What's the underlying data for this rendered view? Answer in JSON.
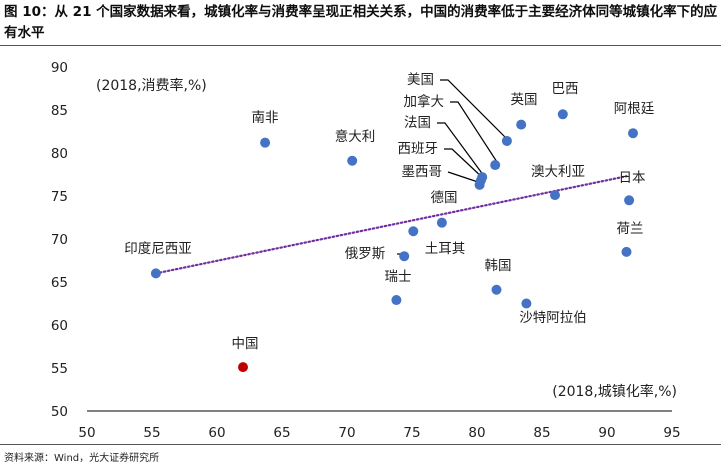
{
  "figure_title": "图 10：从 21 个国家数据来看，城镇化率与消费率呈现正相关关系，中国的消费率低于主要经济体同等城镇化率下的应有水平",
  "source": "资料来源：Wind，光大证券研究所",
  "chart_data": {
    "type": "scatter",
    "ylabel": "(2018,消费率,%)",
    "xlabel": "(2018,城镇化率,%)",
    "xlim": [
      50,
      95
    ],
    "ylim": [
      50,
      90
    ],
    "x_ticks": [
      50,
      55,
      60,
      65,
      70,
      75,
      80,
      85,
      90,
      95
    ],
    "y_ticks": [
      50,
      55,
      60,
      65,
      70,
      75,
      80,
      85,
      90
    ],
    "grid": false,
    "point_color": "#4472c4",
    "highlight_color": "#c00000",
    "trendline_color": "#7030a0",
    "trendline": {
      "style": "dotted",
      "from": [
        55.3,
        66.0
      ],
      "to": [
        91.5,
        77.3
      ]
    },
    "points": [
      {
        "name": "美国",
        "x": 82.3,
        "y": 81.4
      },
      {
        "name": "加拿大",
        "x": 81.4,
        "y": 78.6
      },
      {
        "name": "法国",
        "x": 80.4,
        "y": 77.2
      },
      {
        "name": "西班牙",
        "x": 80.3,
        "y": 76.8
      },
      {
        "name": "墨西哥",
        "x": 80.2,
        "y": 76.3
      },
      {
        "name": "英国",
        "x": 83.4,
        "y": 83.3
      },
      {
        "name": "巴西",
        "x": 86.6,
        "y": 84.5
      },
      {
        "name": "阿根廷",
        "x": 92.0,
        "y": 82.3
      },
      {
        "name": "南非",
        "x": 63.7,
        "y": 81.2
      },
      {
        "name": "意大利",
        "x": 70.4,
        "y": 79.1
      },
      {
        "name": "澳大利亚",
        "x": 86.0,
        "y": 75.1
      },
      {
        "name": "日本",
        "x": 91.7,
        "y": 74.5
      },
      {
        "name": "德国",
        "x": 77.3,
        "y": 71.9
      },
      {
        "name": "土耳其",
        "x": 75.1,
        "y": 70.9
      },
      {
        "name": "荷兰",
        "x": 91.5,
        "y": 68.5
      },
      {
        "name": "印度尼西亚",
        "x": 55.3,
        "y": 66.0
      },
      {
        "name": "俄罗斯",
        "x": 74.4,
        "y": 68.0
      },
      {
        "name": "韩国",
        "x": 81.5,
        "y": 64.1
      },
      {
        "name": "瑞士",
        "x": 73.8,
        "y": 62.9
      },
      {
        "name": "沙特阿拉伯",
        "x": 83.8,
        "y": 62.5
      },
      {
        "name": "中国",
        "x": 62.0,
        "y": 55.1,
        "highlight": true
      }
    ]
  }
}
